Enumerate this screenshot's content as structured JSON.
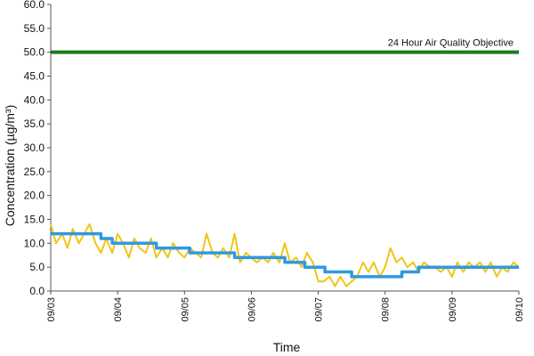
{
  "chart_data": {
    "type": "line",
    "xlabel": "Time",
    "ylabel": "Concentration (µg/m³)",
    "ylim": [
      0,
      60
    ],
    "y_ticks": [
      "0.0",
      "5.0",
      "10.0",
      "15.0",
      "20.0",
      "25.0",
      "30.0",
      "35.0",
      "40.0",
      "45.0",
      "50.0",
      "55.0",
      "60.0"
    ],
    "x_ticks": [
      "09/03",
      "09/04",
      "09/05",
      "09/06",
      "09/07",
      "09/08",
      "09/09",
      "09/10"
    ],
    "grid": false,
    "objective": {
      "label": "24 Hour Air Quality Objective",
      "value": 50,
      "color": "#1e7a1e"
    },
    "colors": {
      "hourly": "#f2c416",
      "running_mean": "#2e9ae0"
    },
    "series": [
      {
        "key": "hourly",
        "x_days": [
          0.0,
          0.08,
          0.17,
          0.25,
          0.33,
          0.42,
          0.5,
          0.58,
          0.67,
          0.75,
          0.83,
          0.92,
          1.0,
          1.08,
          1.17,
          1.25,
          1.33,
          1.42,
          1.5,
          1.58,
          1.67,
          1.75,
          1.83,
          1.92,
          2.0,
          2.08,
          2.17,
          2.25,
          2.33,
          2.42,
          2.5,
          2.58,
          2.67,
          2.75,
          2.83,
          2.92,
          3.0,
          3.08,
          3.17,
          3.25,
          3.33,
          3.42,
          3.5,
          3.58,
          3.67,
          3.75,
          3.83,
          3.92,
          4.0,
          4.08,
          4.17,
          4.25,
          4.33,
          4.42,
          4.5,
          4.58,
          4.67,
          4.75,
          4.83,
          4.92,
          5.0,
          5.08,
          5.17,
          5.25,
          5.33,
          5.42,
          5.5,
          5.58,
          5.67,
          5.75,
          5.83,
          5.92,
          6.0,
          6.08,
          6.17,
          6.25,
          6.33,
          6.42,
          6.5,
          6.58,
          6.67,
          6.75,
          6.83,
          6.92,
          7.0
        ],
        "values": [
          14,
          10,
          12,
          9,
          13,
          10,
          12,
          14,
          10,
          8,
          11,
          8,
          12,
          10,
          7,
          11,
          9,
          8,
          11,
          7,
          9,
          7,
          10,
          8,
          7,
          9,
          8,
          7,
          12,
          8,
          7,
          9,
          7,
          12,
          6,
          8,
          7,
          6,
          7,
          6,
          8,
          6,
          10,
          6,
          7,
          5,
          8,
          6,
          2,
          2,
          3,
          1,
          3,
          1,
          2,
          3,
          6,
          4,
          6,
          3,
          5,
          9,
          6,
          7,
          5,
          6,
          4,
          6,
          5,
          5,
          4,
          5,
          3,
          6,
          4,
          6,
          5,
          6,
          4,
          6,
          3,
          5,
          4,
          6,
          5
        ]
      },
      {
        "key": "running_mean",
        "x_days": [
          0.0,
          0.75,
          0.75,
          0.92,
          0.92,
          1.58,
          1.58,
          2.08,
          2.08,
          2.75,
          2.75,
          3.5,
          3.5,
          3.8,
          3.8,
          4.1,
          4.1,
          4.5,
          4.5,
          4.65,
          4.65,
          5.25,
          5.25,
          5.5,
          5.5,
          7.0
        ],
        "values": [
          12,
          12,
          11,
          11,
          10,
          10,
          9,
          9,
          8,
          8,
          7,
          7,
          6,
          6,
          5,
          5,
          4,
          4,
          3,
          3,
          3,
          3,
          4,
          4,
          5,
          5
        ]
      }
    ]
  }
}
